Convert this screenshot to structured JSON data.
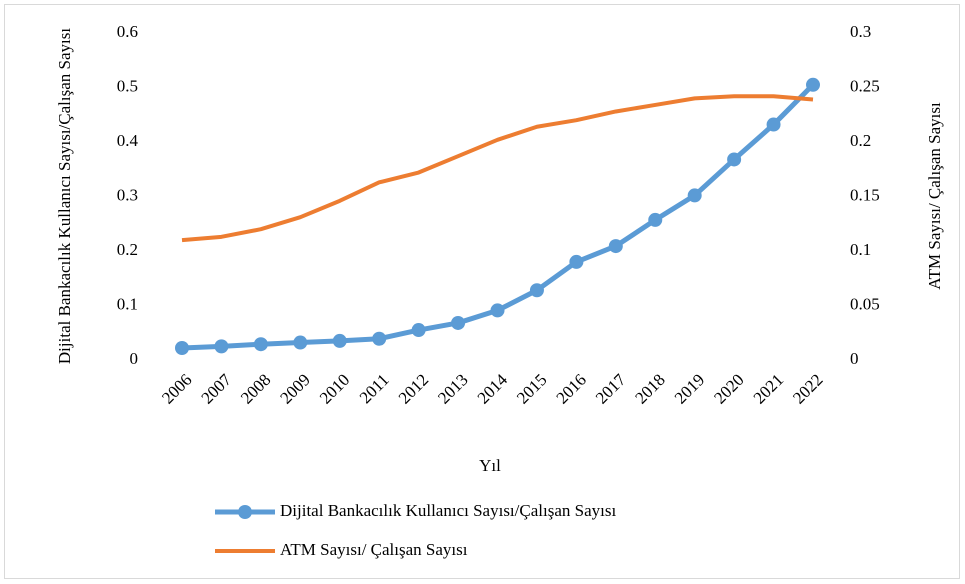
{
  "chart_data": {
    "type": "line",
    "x_label": "Yıl",
    "y_label": "Dijital  Bankacılık Kullanıcı Sayısı/Çalışan Sayısı",
    "y2_label": "ATM Sayısı/ Çalışan Sayısı",
    "categories": [
      "2006",
      "2007",
      "2008",
      "2009",
      "2010",
      "2011",
      "2012",
      "2013",
      "2014",
      "2015",
      "2016",
      "2017",
      "2018",
      "2019",
      "2020",
      "2021",
      "2022"
    ],
    "series": [
      {
        "name": "Dijital Bankacılık Kullanıcı Sayısı/Çalışan Sayısı",
        "color": "#5b9bd5",
        "markers": true,
        "values": [
          0.022,
          0.025,
          0.029,
          0.032,
          0.035,
          0.039,
          0.055,
          0.068,
          0.091,
          0.128,
          0.18,
          0.209,
          0.257,
          0.302,
          0.368,
          0.432,
          0.505
        ]
      },
      {
        "name": "ATM Sayısı/ Çalışan Sayısı",
        "color": "#ed7d31",
        "markers": false,
        "axis": "y2",
        "values": [
          0.11,
          0.113,
          0.12,
          0.131,
          0.146,
          0.163,
          0.172,
          0.187,
          0.202,
          0.214,
          0.22,
          0.228,
          0.234,
          0.24,
          0.242,
          0.242,
          0.239
        ]
      }
    ],
    "ylim": [
      0,
      0.6
    ],
    "yticks": [
      0,
      0.1,
      0.2,
      0.3,
      0.4,
      0.5,
      0.6
    ],
    "y2lim": [
      0,
      0.3
    ],
    "y2ticks": [
      0,
      0.05,
      0.1,
      0.15,
      0.2,
      0.25,
      0.3
    ],
    "grid": false,
    "legend": "bottom"
  }
}
